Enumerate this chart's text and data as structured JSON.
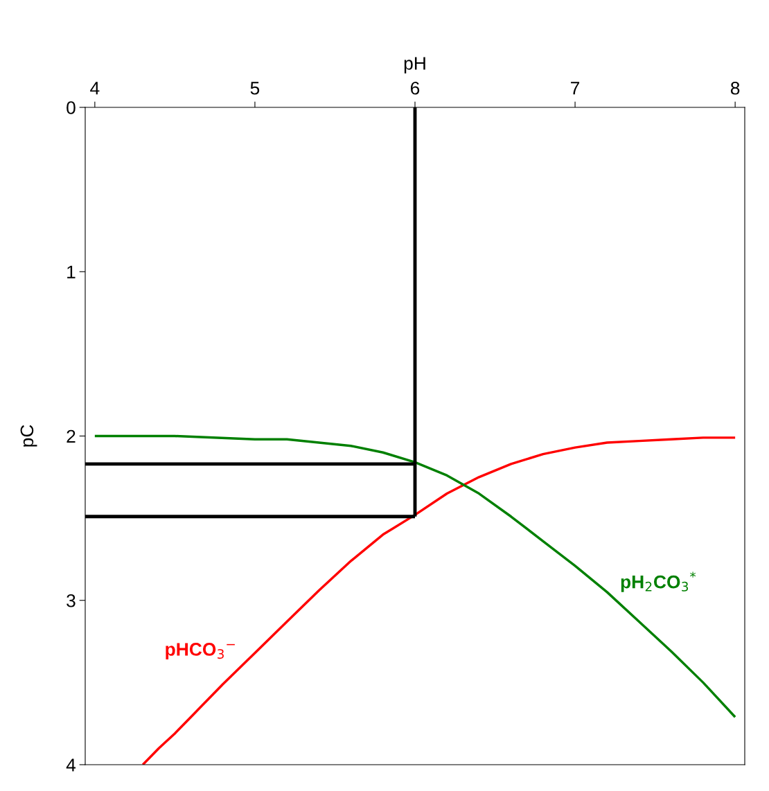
{
  "chart_data": {
    "type": "line",
    "xlabel": "pH",
    "ylabel": "pC",
    "xlim": [
      3.94,
      8.06
    ],
    "xticks": [
      4,
      5,
      6,
      7,
      8
    ],
    "ylim": [
      4,
      0
    ],
    "yticks": [
      0,
      1,
      2,
      3,
      4
    ],
    "grid": false,
    "legend": false,
    "marker": "none",
    "line_style": "solid",
    "series": [
      {
        "name": "pHCO$_{3}$$^{−}$",
        "color": "#ff0000",
        "x": [
          4.3,
          4.4,
          4.5,
          4.6,
          4.7,
          4.8,
          5.0,
          5.2,
          5.4,
          5.6,
          5.8,
          6.0,
          6.2,
          6.4,
          6.6,
          6.8,
          7.0,
          7.2,
          7.4,
          7.6,
          7.8,
          8.0
        ],
        "values": [
          4.0,
          3.9,
          3.81,
          3.71,
          3.61,
          3.51,
          3.32,
          3.13,
          2.94,
          2.76,
          2.6,
          2.48,
          2.35,
          2.25,
          2.17,
          2.11,
          2.07,
          2.04,
          2.03,
          2.02,
          2.01,
          2.01
        ]
      },
      {
        "name": "pH$_{2}$CO$_{3}$$^{*}$",
        "color": "#008000",
        "x": [
          4.0,
          4.5,
          5.0,
          5.2,
          5.4,
          5.6,
          5.8,
          6.0,
          6.2,
          6.4,
          6.6,
          6.8,
          7.0,
          7.2,
          7.4,
          7.6,
          7.8,
          8.0
        ],
        "values": [
          2.0,
          2.0,
          2.02,
          2.02,
          2.04,
          2.06,
          2.1,
          2.16,
          2.24,
          2.35,
          2.49,
          2.64,
          2.79,
          2.95,
          3.13,
          3.31,
          3.5,
          3.71
        ]
      },
      {
        "color": "#000000",
        "x": [
          6.0,
          6.0
        ],
        "values": [
          0,
          2.49
        ]
      },
      {
        "color": "#000000",
        "x": [
          3.94,
          6.0
        ],
        "values": [
          2.17,
          2.17
        ]
      },
      {
        "color": "#000000",
        "x": [
          3.94,
          6.0
        ],
        "values": [
          2.49,
          2.49
        ]
      }
    ]
  }
}
